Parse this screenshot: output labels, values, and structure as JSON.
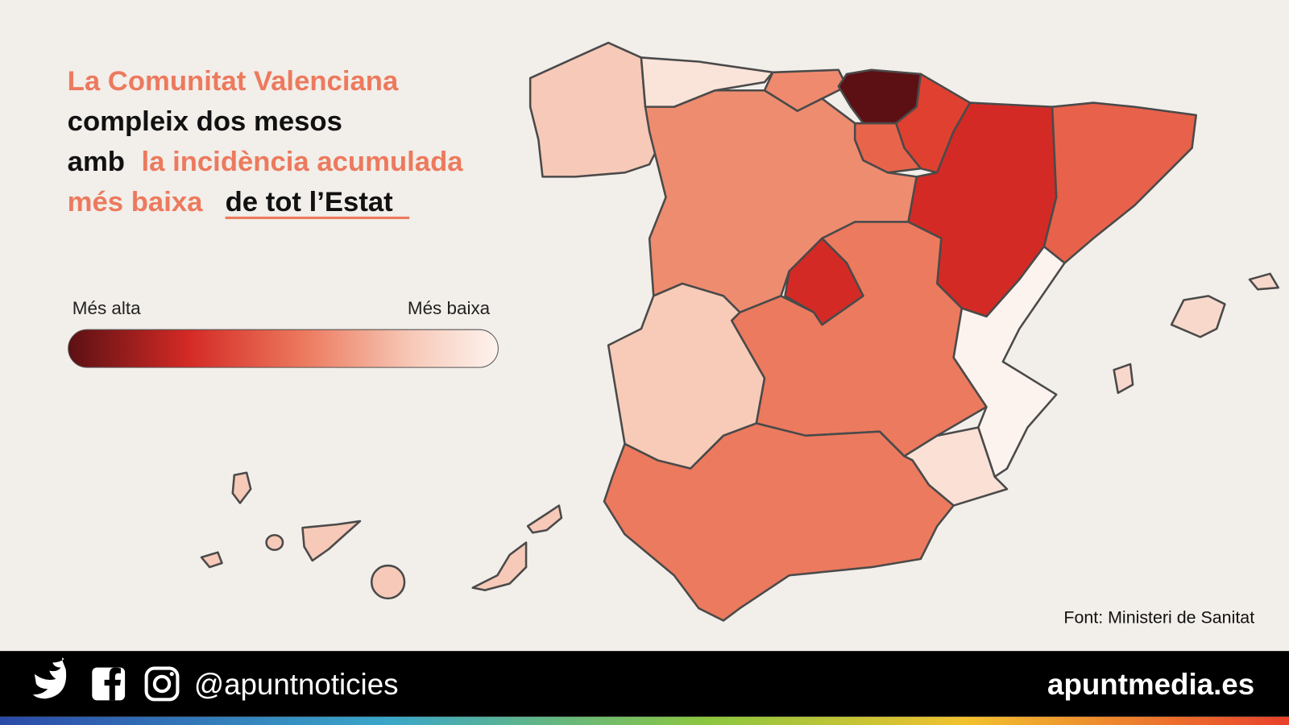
{
  "title": {
    "line1": "La Comunitat Valenciana",
    "line2": "compleix dos mesos",
    "line3a": "amb",
    "line3b": "la incidència acumulada",
    "line4a": "més baixa",
    "line4b": "de tot l’Estat"
  },
  "legend": {
    "high": "Més alta",
    "low": "Més baixa"
  },
  "source": "Font: Ministeri de Sanitat",
  "footer": {
    "handle": "@apuntnoticies",
    "site": "apuntmedia.es"
  }
}
